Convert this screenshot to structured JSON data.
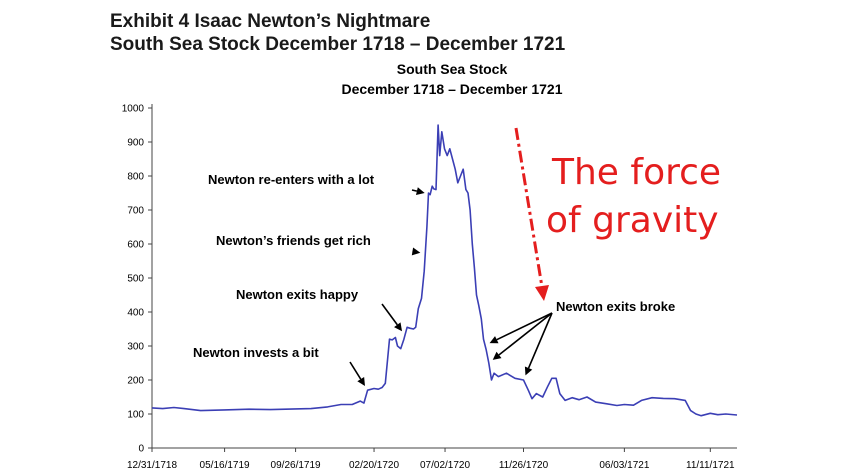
{
  "exhibit": {
    "line1": "Exhibit 4  Isaac Newton’s Nightmare",
    "line2": "South Sea Stock December 1718 – December 1721"
  },
  "chart_data": {
    "type": "line",
    "title": "South Sea Stock",
    "subtitle": "December 1718 – December 1721",
    "xlabel": "",
    "ylabel": "",
    "ylim": [
      0,
      1000
    ],
    "yticks": [
      0,
      100,
      200,
      300,
      400,
      500,
      600,
      700,
      800,
      900,
      1000
    ],
    "xlim": [
      "12/31/1718",
      "12/31/1721"
    ],
    "xticks": [
      "12/31/1718",
      "05/16/1719",
      "09/26/1719",
      "02/20/1720",
      "07/02/1720",
      "11/26/1720",
      "06/03/1721",
      "11/11/1721"
    ],
    "grid": false,
    "series": [
      {
        "color": "#3b3fb5",
        "points": [
          [
            "1718-12-31",
            118
          ],
          [
            "1719-01-20",
            116
          ],
          [
            "1719-02-10",
            119
          ],
          [
            "1719-03-01",
            116
          ],
          [
            "1719-04-01",
            110
          ],
          [
            "1719-05-16",
            112
          ],
          [
            "1719-07-01",
            114
          ],
          [
            "1719-08-10",
            113
          ],
          [
            "1719-09-26",
            115
          ],
          [
            "1719-10-25",
            116
          ],
          [
            "1719-11-25",
            121
          ],
          [
            "1719-12-20",
            128
          ],
          [
            "1720-01-10",
            128
          ],
          [
            "1720-01-25",
            138
          ],
          [
            "1720-02-01",
            132
          ],
          [
            "1720-02-08",
            170
          ],
          [
            "1720-02-20",
            175
          ],
          [
            "1720-02-28",
            173
          ],
          [
            "1720-03-06",
            178
          ],
          [
            "1720-03-12",
            190
          ],
          [
            "1720-03-20",
            320
          ],
          [
            "1720-03-25",
            318
          ],
          [
            "1720-03-31",
            325
          ],
          [
            "1720-04-04",
            300
          ],
          [
            "1720-04-10",
            292
          ],
          [
            "1720-04-16",
            320
          ],
          [
            "1720-04-22",
            355
          ],
          [
            "1720-04-28",
            352
          ],
          [
            "1720-05-04",
            350
          ],
          [
            "1720-05-08",
            355
          ],
          [
            "1720-05-13",
            410
          ],
          [
            "1720-05-19",
            440
          ],
          [
            "1720-05-24",
            520
          ],
          [
            "1720-05-29",
            650
          ],
          [
            "1720-06-01",
            750
          ],
          [
            "1720-06-04",
            745
          ],
          [
            "1720-06-08",
            770
          ],
          [
            "1720-06-11",
            762
          ],
          [
            "1720-06-15",
            760
          ],
          [
            "1720-06-19",
            950
          ],
          [
            "1720-06-22",
            860
          ],
          [
            "1720-06-26",
            930
          ],
          [
            "1720-07-01",
            880
          ],
          [
            "1720-07-06",
            860
          ],
          [
            "1720-07-11",
            880
          ],
          [
            "1720-07-16",
            850
          ],
          [
            "1720-07-21",
            820
          ],
          [
            "1720-07-26",
            780
          ],
          [
            "1720-07-31",
            800
          ],
          [
            "1720-08-05",
            820
          ],
          [
            "1720-08-10",
            760
          ],
          [
            "1720-08-14",
            750
          ],
          [
            "1720-08-18",
            700
          ],
          [
            "1720-08-22",
            600
          ],
          [
            "1720-08-26",
            530
          ],
          [
            "1720-08-30",
            450
          ],
          [
            "1720-09-03",
            420
          ],
          [
            "1720-09-08",
            380
          ],
          [
            "1720-09-12",
            320
          ],
          [
            "1720-09-17",
            290
          ],
          [
            "1720-09-22",
            250
          ],
          [
            "1720-09-27",
            200
          ],
          [
            "1720-10-02",
            220
          ],
          [
            "1720-10-10",
            210
          ],
          [
            "1720-10-25",
            220
          ],
          [
            "1720-11-10",
            205
          ],
          [
            "1720-11-26",
            200
          ],
          [
            "1720-12-05",
            170
          ],
          [
            "1720-12-12",
            145
          ],
          [
            "1720-12-20",
            160
          ],
          [
            "1721-01-01",
            150
          ],
          [
            "1721-01-10",
            180
          ],
          [
            "1721-01-18",
            205
          ],
          [
            "1721-01-26",
            205
          ],
          [
            "1721-02-02",
            160
          ],
          [
            "1721-02-12",
            140
          ],
          [
            "1721-02-25",
            148
          ],
          [
            "1721-03-10",
            142
          ],
          [
            "1721-03-25",
            150
          ],
          [
            "1721-04-10",
            135
          ],
          [
            "1721-05-01",
            130
          ],
          [
            "1721-05-20",
            125
          ],
          [
            "1721-06-03",
            128
          ],
          [
            "1721-06-20",
            126
          ],
          [
            "1721-07-05",
            140
          ],
          [
            "1721-07-25",
            148
          ],
          [
            "1721-08-15",
            146
          ],
          [
            "1721-09-05",
            145
          ],
          [
            "1721-09-25",
            140
          ],
          [
            "1721-10-05",
            110
          ],
          [
            "1721-10-15",
            100
          ],
          [
            "1721-10-25",
            95
          ],
          [
            "1721-11-11",
            102
          ],
          [
            "1721-11-25",
            98
          ],
          [
            "1721-12-10",
            100
          ],
          [
            "1721-12-31",
            97
          ]
        ]
      }
    ],
    "annotations": [
      {
        "text": "Newton invests a bit",
        "at": "1720-02-08"
      },
      {
        "text": "Newton exits happy",
        "at": "1720-04-18"
      },
      {
        "text": "Newton’s friends get rich",
        "at": "1720-05-26"
      },
      {
        "text": "Newton re-enters with a lot",
        "at": "1720-06-03"
      },
      {
        "text": "Newton exits broke",
        "at": [
          "1720-09-15",
          "1720-09-22",
          "1720-11-26"
        ]
      }
    ],
    "overlay_text": [
      "The force",
      "of gravity"
    ],
    "overlay_color": "#e41e1e"
  }
}
